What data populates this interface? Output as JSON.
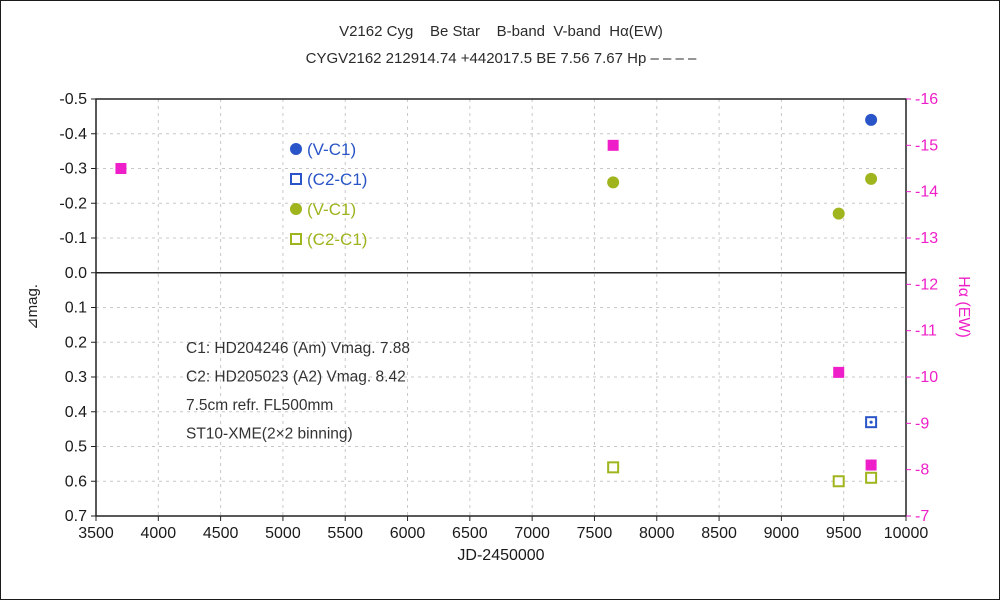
{
  "chart_data": {
    "type": "scatter",
    "title": "V2162 Cyg    Be Star    B-band  V-band  Hα(EW)",
    "subtitle": "CYGV2162 212914.74 +442017.5 BE 7.56 7.67 Hp – – – –",
    "xlabel": "JD-2450000",
    "ylabel_left": "⊿mag.",
    "ylabel_right": "Hα (EW)",
    "x_range": [
      3500,
      10000
    ],
    "x_ticks": [
      3500,
      4000,
      4500,
      5000,
      5500,
      6000,
      6500,
      7000,
      7500,
      8000,
      8500,
      9000,
      9500,
      10000
    ],
    "y_left_range": [
      -0.5,
      0.7
    ],
    "y_left_ticks": [
      -0.5,
      -0.4,
      -0.3,
      -0.2,
      -0.1,
      0.0,
      0.1,
      0.2,
      0.3,
      0.4,
      0.5,
      0.6,
      0.7
    ],
    "y_right_range": [
      -16,
      -7
    ],
    "y_right_ticks": [
      -16,
      -15,
      -14,
      -13,
      -12,
      -11,
      -10,
      -9,
      -8,
      -7
    ],
    "grid": true,
    "colors": {
      "blue": "#2a55c8",
      "green": "#a0b41e",
      "magenta": "#ee1fc8",
      "grid": "#c8c8c8",
      "axis": "#222222",
      "text": "#1a1a1a",
      "note": "#333333"
    },
    "series": [
      {
        "name": "B-band V-C1",
        "marker": "circle-filled",
        "color": "blue",
        "axis": "left",
        "points": [
          [
            9720,
            -0.44
          ]
        ]
      },
      {
        "name": "B-band C2-C1",
        "marker": "square-open-dot",
        "color": "blue",
        "axis": "left",
        "points": [
          [
            9720,
            0.43
          ]
        ]
      },
      {
        "name": "V-band V-C1",
        "marker": "circle-filled",
        "color": "green",
        "axis": "left",
        "points": [
          [
            7650,
            -0.26
          ],
          [
            9460,
            -0.17
          ],
          [
            9720,
            -0.27
          ]
        ]
      },
      {
        "name": "V-band C2-C1",
        "marker": "square-open",
        "color": "green",
        "axis": "left",
        "points": [
          [
            7650,
            0.56
          ],
          [
            9460,
            0.6
          ],
          [
            9720,
            0.59
          ]
        ]
      },
      {
        "name": "Halpha EW",
        "marker": "square-filled",
        "color": "magenta",
        "axis": "right",
        "points": [
          [
            3700,
            -14.5
          ],
          [
            7650,
            -15.0
          ],
          [
            9460,
            -10.1
          ],
          [
            9720,
            -8.1
          ]
        ]
      }
    ],
    "legend": {
      "position": "inside-upper-left",
      "items": [
        {
          "marker": "circle-filled",
          "color": "blue",
          "label": "(V-C1)"
        },
        {
          "marker": "square-open",
          "color": "blue",
          "label": "(C2-C1)"
        },
        {
          "marker": "circle-filled",
          "color": "green",
          "label": "(V-C1)"
        },
        {
          "marker": "square-open",
          "color": "green",
          "label": "(C2-C1)"
        }
      ]
    },
    "annotations": [
      "C1: HD204246 (Am) Vmag. 7.88",
      "C2: HD205023 (A2) Vmag. 8.42",
      "7.5cm refr. FL500mm",
      "ST10-XME(2×2 binning)"
    ]
  }
}
